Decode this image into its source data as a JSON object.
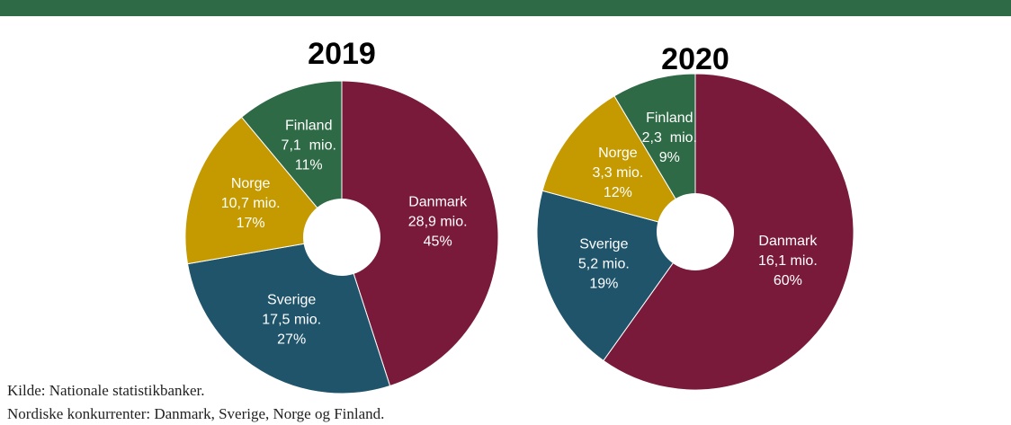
{
  "chart_data": [
    {
      "type": "pie",
      "title": "2019",
      "categories": [
        "Danmark",
        "Sverige",
        "Norge",
        "Finland"
      ],
      "values": [
        28.9,
        17.5,
        10.7,
        7.1
      ],
      "value_labels": [
        "28,9 mio.",
        "17,5 mio.",
        "10,7 mio.",
        "7,1  mio."
      ],
      "shares": [
        45,
        27,
        17,
        11
      ],
      "share_labels": [
        "45%",
        "27%",
        "17%",
        "11%"
      ],
      "colors": [
        "#7a1a3a",
        "#1f546b",
        "#c49a00",
        "#2e6a45"
      ]
    },
    {
      "type": "pie",
      "title": "2020",
      "categories": [
        "Danmark",
        "Sverige",
        "Norge",
        "Finland"
      ],
      "values": [
        16.1,
        5.2,
        3.3,
        2.3
      ],
      "value_labels": [
        "16,1 mio.",
        "5,2 mio.",
        "3,3 mio.",
        "2,3  mio."
      ],
      "shares": [
        60,
        19,
        12,
        9
      ],
      "share_labels": [
        "60%",
        "19%",
        "12%",
        "9%"
      ],
      "colors": [
        "#7a1a3a",
        "#1f546b",
        "#c49a00",
        "#2e6a45"
      ]
    }
  ],
  "footer": [
    "Kilde: Nationale statistikbanker.",
    "Nordiske konkurrenter: Danmark, Sverige, Norge og Finland."
  ]
}
